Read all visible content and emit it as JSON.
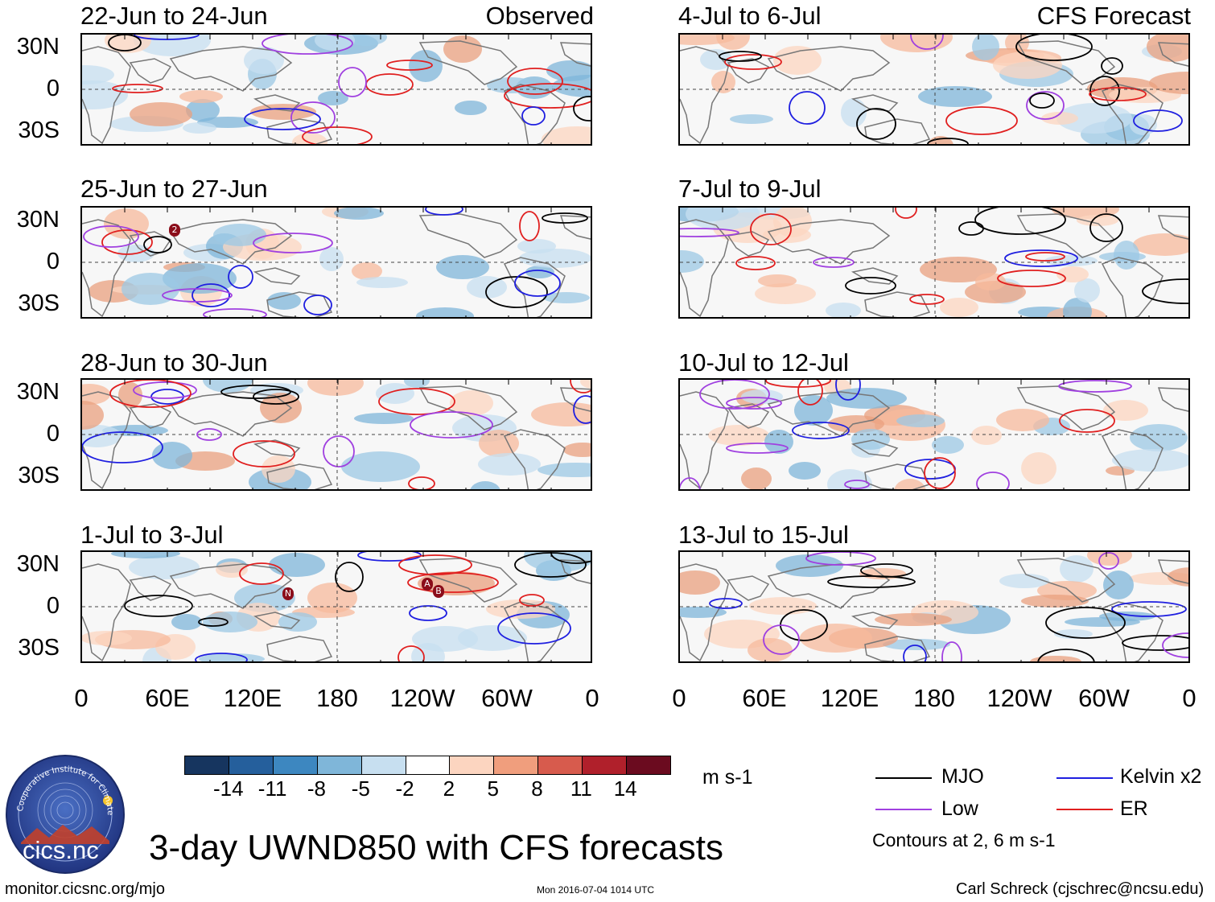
{
  "header": {
    "left_tag": "Observed",
    "right_tag": "CFS Forecast"
  },
  "panels": [
    {
      "title": "22-Jun to 24-Jun"
    },
    {
      "title": "25-Jun to 27-Jun"
    },
    {
      "title": "28-Jun to 30-Jun"
    },
    {
      "title": "1-Jul to 3-Jul"
    },
    {
      "title": "4-Jul to 6-Jul"
    },
    {
      "title": "7-Jul to 9-Jul"
    },
    {
      "title": "10-Jul to 12-Jul"
    },
    {
      "title": "13-Jul to 15-Jul"
    }
  ],
  "lat_labels": [
    "30N",
    "0",
    "30S"
  ],
  "lon_labels": [
    "0",
    "60E",
    "120E",
    "180",
    "120W",
    "60W",
    "0"
  ],
  "colorbar": {
    "unit": "m s-1",
    "ticks": [
      "-14",
      "-11",
      "-8",
      "-5",
      "-2",
      "2",
      "5",
      "8",
      "11",
      "14"
    ],
    "colors": [
      "#16355f",
      "#255f9c",
      "#3d87c0",
      "#7fb6d9",
      "#c7dff0",
      "#ffffff",
      "#fcd5c0",
      "#f09e7d",
      "#d75b4d",
      "#b0202b",
      "#6b0b1f"
    ]
  },
  "legend": {
    "items": [
      {
        "label": "MJO",
        "color": "#000000"
      },
      {
        "label": "Kelvin x2",
        "color": "#1f1fe0"
      },
      {
        "label": "Low",
        "color": "#a040e0"
      },
      {
        "label": "ER",
        "color": "#e01f1f"
      }
    ],
    "note": "Contours at 2, 6 m s-1"
  },
  "logo": {
    "text": "cics.nc",
    "ring_text": "Cooperative Institute for Climate and Satellites"
  },
  "main_title": "3-day UWND850 with CFS forecasts",
  "footer": {
    "left": "monitor.cicsnc.org/mjo",
    "center": "Mon 2016-07-04 1014 UTC",
    "right": "Carl Schreck (cjschrec@ncsu.edu)"
  },
  "storm_markers": [
    {
      "panel": 1,
      "label": "2"
    },
    {
      "panel": 3,
      "label": "N"
    },
    {
      "panel": 3,
      "label": "A"
    },
    {
      "panel": 3,
      "label": "B"
    }
  ]
}
